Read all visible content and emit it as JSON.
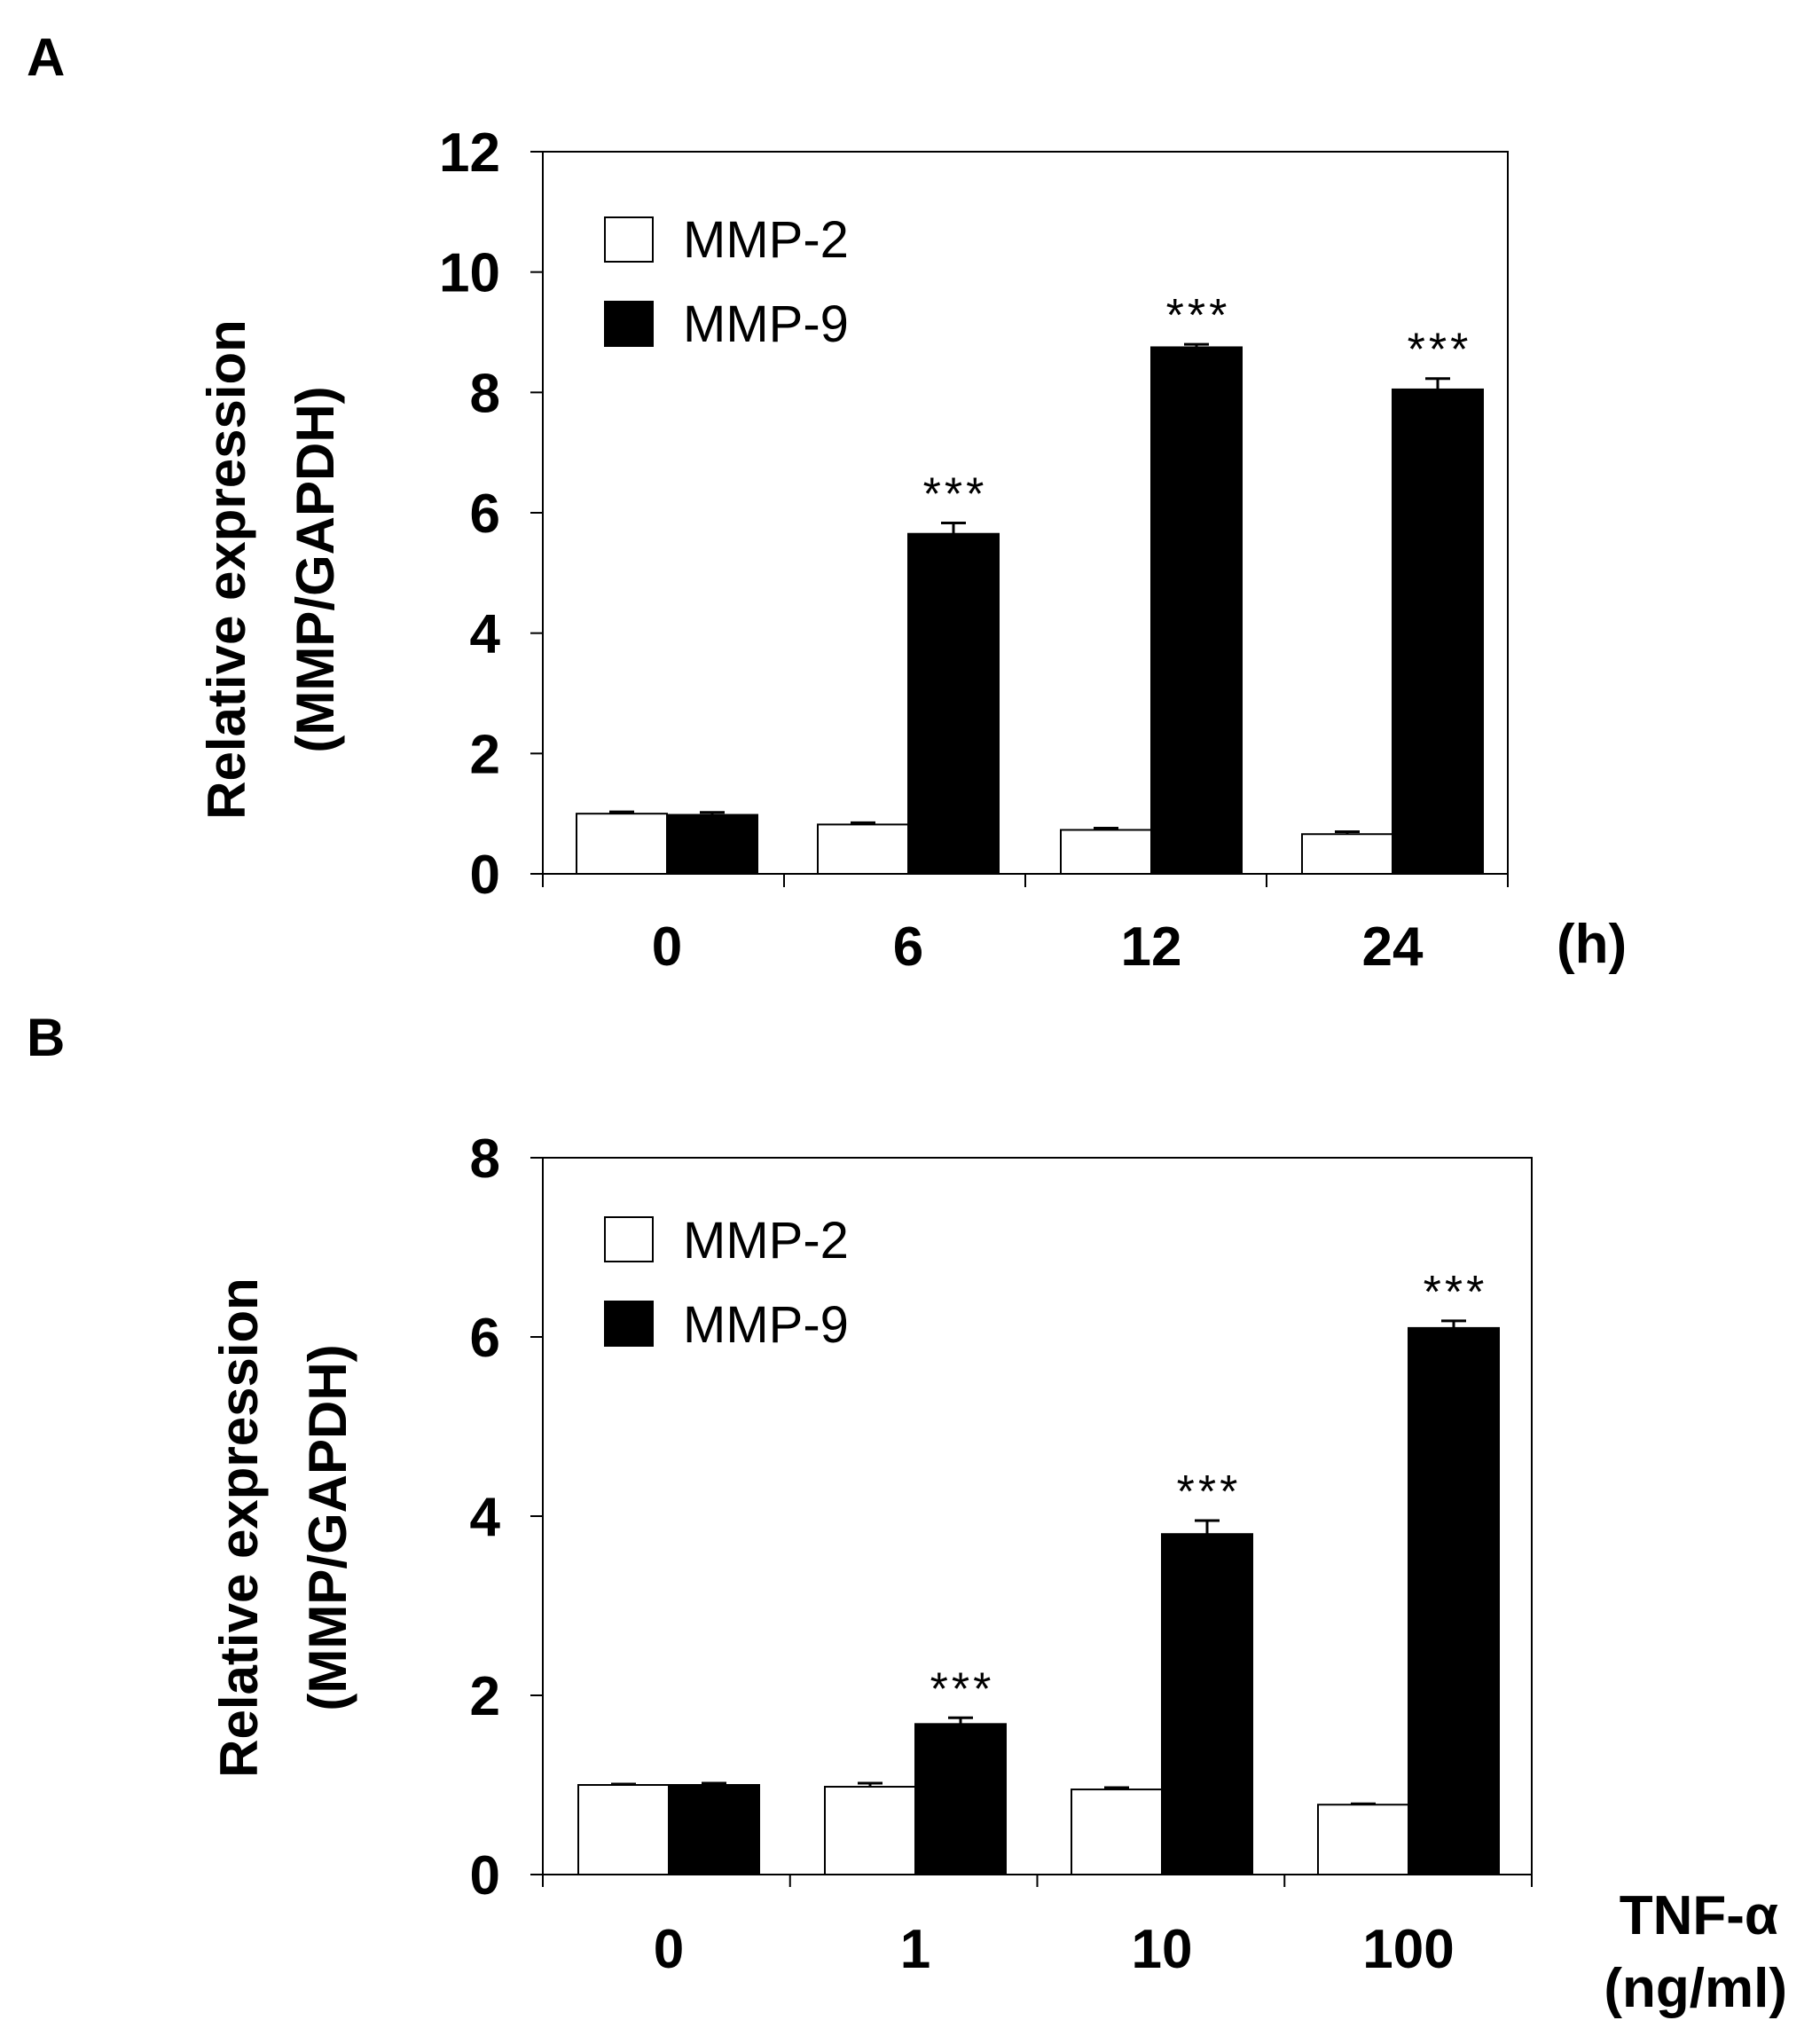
{
  "chart_data": [
    {
      "panel": "A",
      "type": "bar",
      "categories": [
        "0",
        "6",
        "12",
        "24"
      ],
      "x_unit": "(h)",
      "ylabel_line1": "Relative expression",
      "ylabel_line2": "(MMP/GAPDH)",
      "ylim": [
        0,
        12
      ],
      "yticks": [
        "0",
        "2",
        "4",
        "6",
        "8",
        "10",
        "12"
      ],
      "series": [
        {
          "name": "MMP-2",
          "color": "#ffffff",
          "values": [
            1.0,
            0.82,
            0.73,
            0.66
          ],
          "errors": [
            0.03,
            0.03,
            0.03,
            0.04
          ]
        },
        {
          "name": "MMP-9",
          "color": "#000000",
          "values": [
            0.98,
            5.65,
            8.75,
            8.05
          ],
          "errors": [
            0.04,
            0.18,
            0.05,
            0.18
          ]
        }
      ],
      "annotations": [
        "",
        "***",
        "***",
        "***"
      ]
    },
    {
      "panel": "B",
      "type": "bar",
      "categories": [
        "0",
        "1",
        "10",
        "100"
      ],
      "x_unit_line1": "TNF-α",
      "x_unit_line2": "(ng/ml)",
      "ylabel_line1": "Relative expression",
      "ylabel_line2": "(MMP/GAPDH)",
      "ylim": [
        0,
        8
      ],
      "yticks": [
        "0",
        "2",
        "4",
        "6",
        "8"
      ],
      "series": [
        {
          "name": "MMP-2",
          "color": "#ffffff",
          "values": [
            1.0,
            0.98,
            0.95,
            0.78
          ],
          "errors": [
            0.01,
            0.04,
            0.02,
            0.01
          ]
        },
        {
          "name": "MMP-9",
          "color": "#000000",
          "values": [
            1.0,
            1.68,
            3.8,
            6.1
          ],
          "errors": [
            0.02,
            0.07,
            0.15,
            0.08
          ]
        }
      ],
      "annotations": [
        "",
        "***",
        "***",
        "***"
      ]
    }
  ]
}
